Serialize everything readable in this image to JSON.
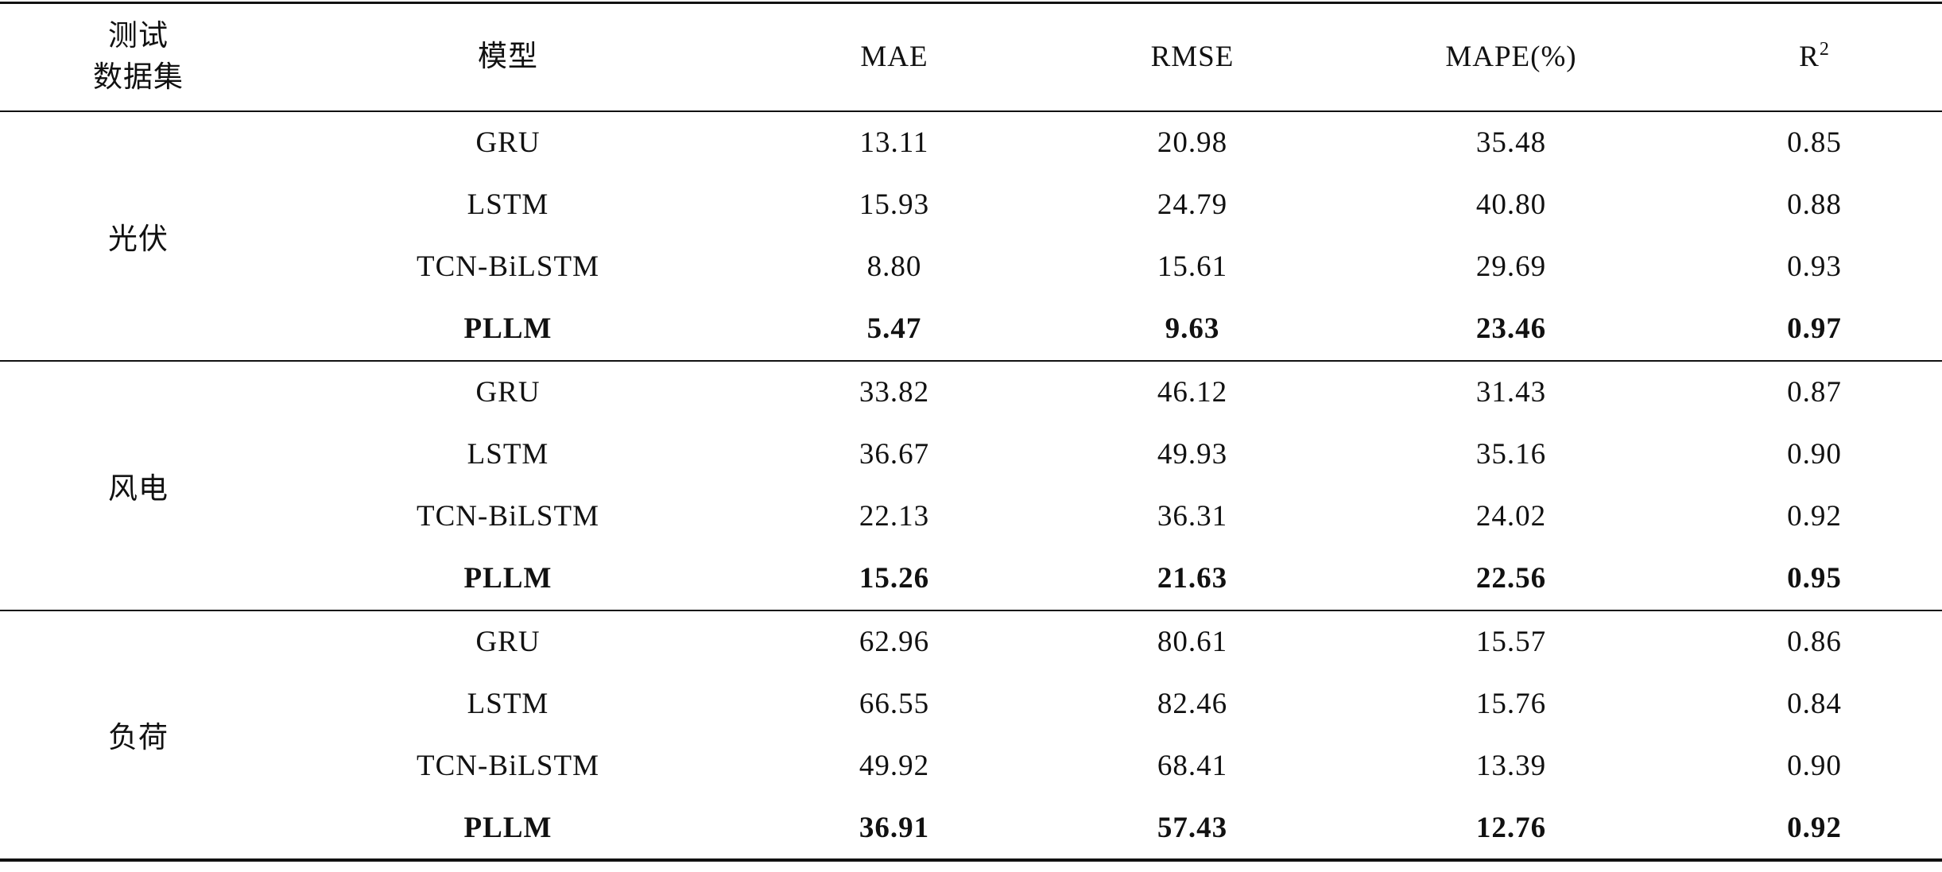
{
  "table": {
    "header": [
      [
        "测试",
        "数据集"
      ],
      "模型",
      "MAE",
      "RMSE",
      "MAPE(%)",
      {
        "base": "R",
        "sup": "2"
      }
    ],
    "groups": [
      {
        "dataset": "光伏",
        "rows": [
          [
            "GRU",
            "13.11",
            "20.98",
            "35.48",
            "0.85"
          ],
          [
            "LSTM",
            "15.93",
            "24.79",
            "40.80",
            "0.88"
          ],
          [
            "TCN-BiLSTM",
            "8.80",
            "15.61",
            "29.69",
            "0.93"
          ],
          [
            "PLLM",
            "5.47",
            "9.63",
            "23.46",
            "0.97"
          ]
        ]
      },
      {
        "dataset": "风电",
        "rows": [
          [
            "GRU",
            "33.82",
            "46.12",
            "31.43",
            "0.87"
          ],
          [
            "LSTM",
            "36.67",
            "49.93",
            "35.16",
            "0.90"
          ],
          [
            "TCN-BiLSTM",
            "22.13",
            "36.31",
            "24.02",
            "0.92"
          ],
          [
            "PLLM",
            "15.26",
            "21.63",
            "22.56",
            "0.95"
          ]
        ]
      },
      {
        "dataset": "负荷",
        "rows": [
          [
            "GRU",
            "62.96",
            "80.61",
            "15.57",
            "0.86"
          ],
          [
            "LSTM",
            "66.55",
            "82.46",
            "15.76",
            "0.84"
          ],
          [
            "TCN-BiLSTM",
            "49.92",
            "68.41",
            "13.39",
            "0.90"
          ],
          [
            "PLLM",
            "36.91",
            "57.43",
            "12.76",
            "0.92"
          ]
        ]
      }
    ]
  }
}
